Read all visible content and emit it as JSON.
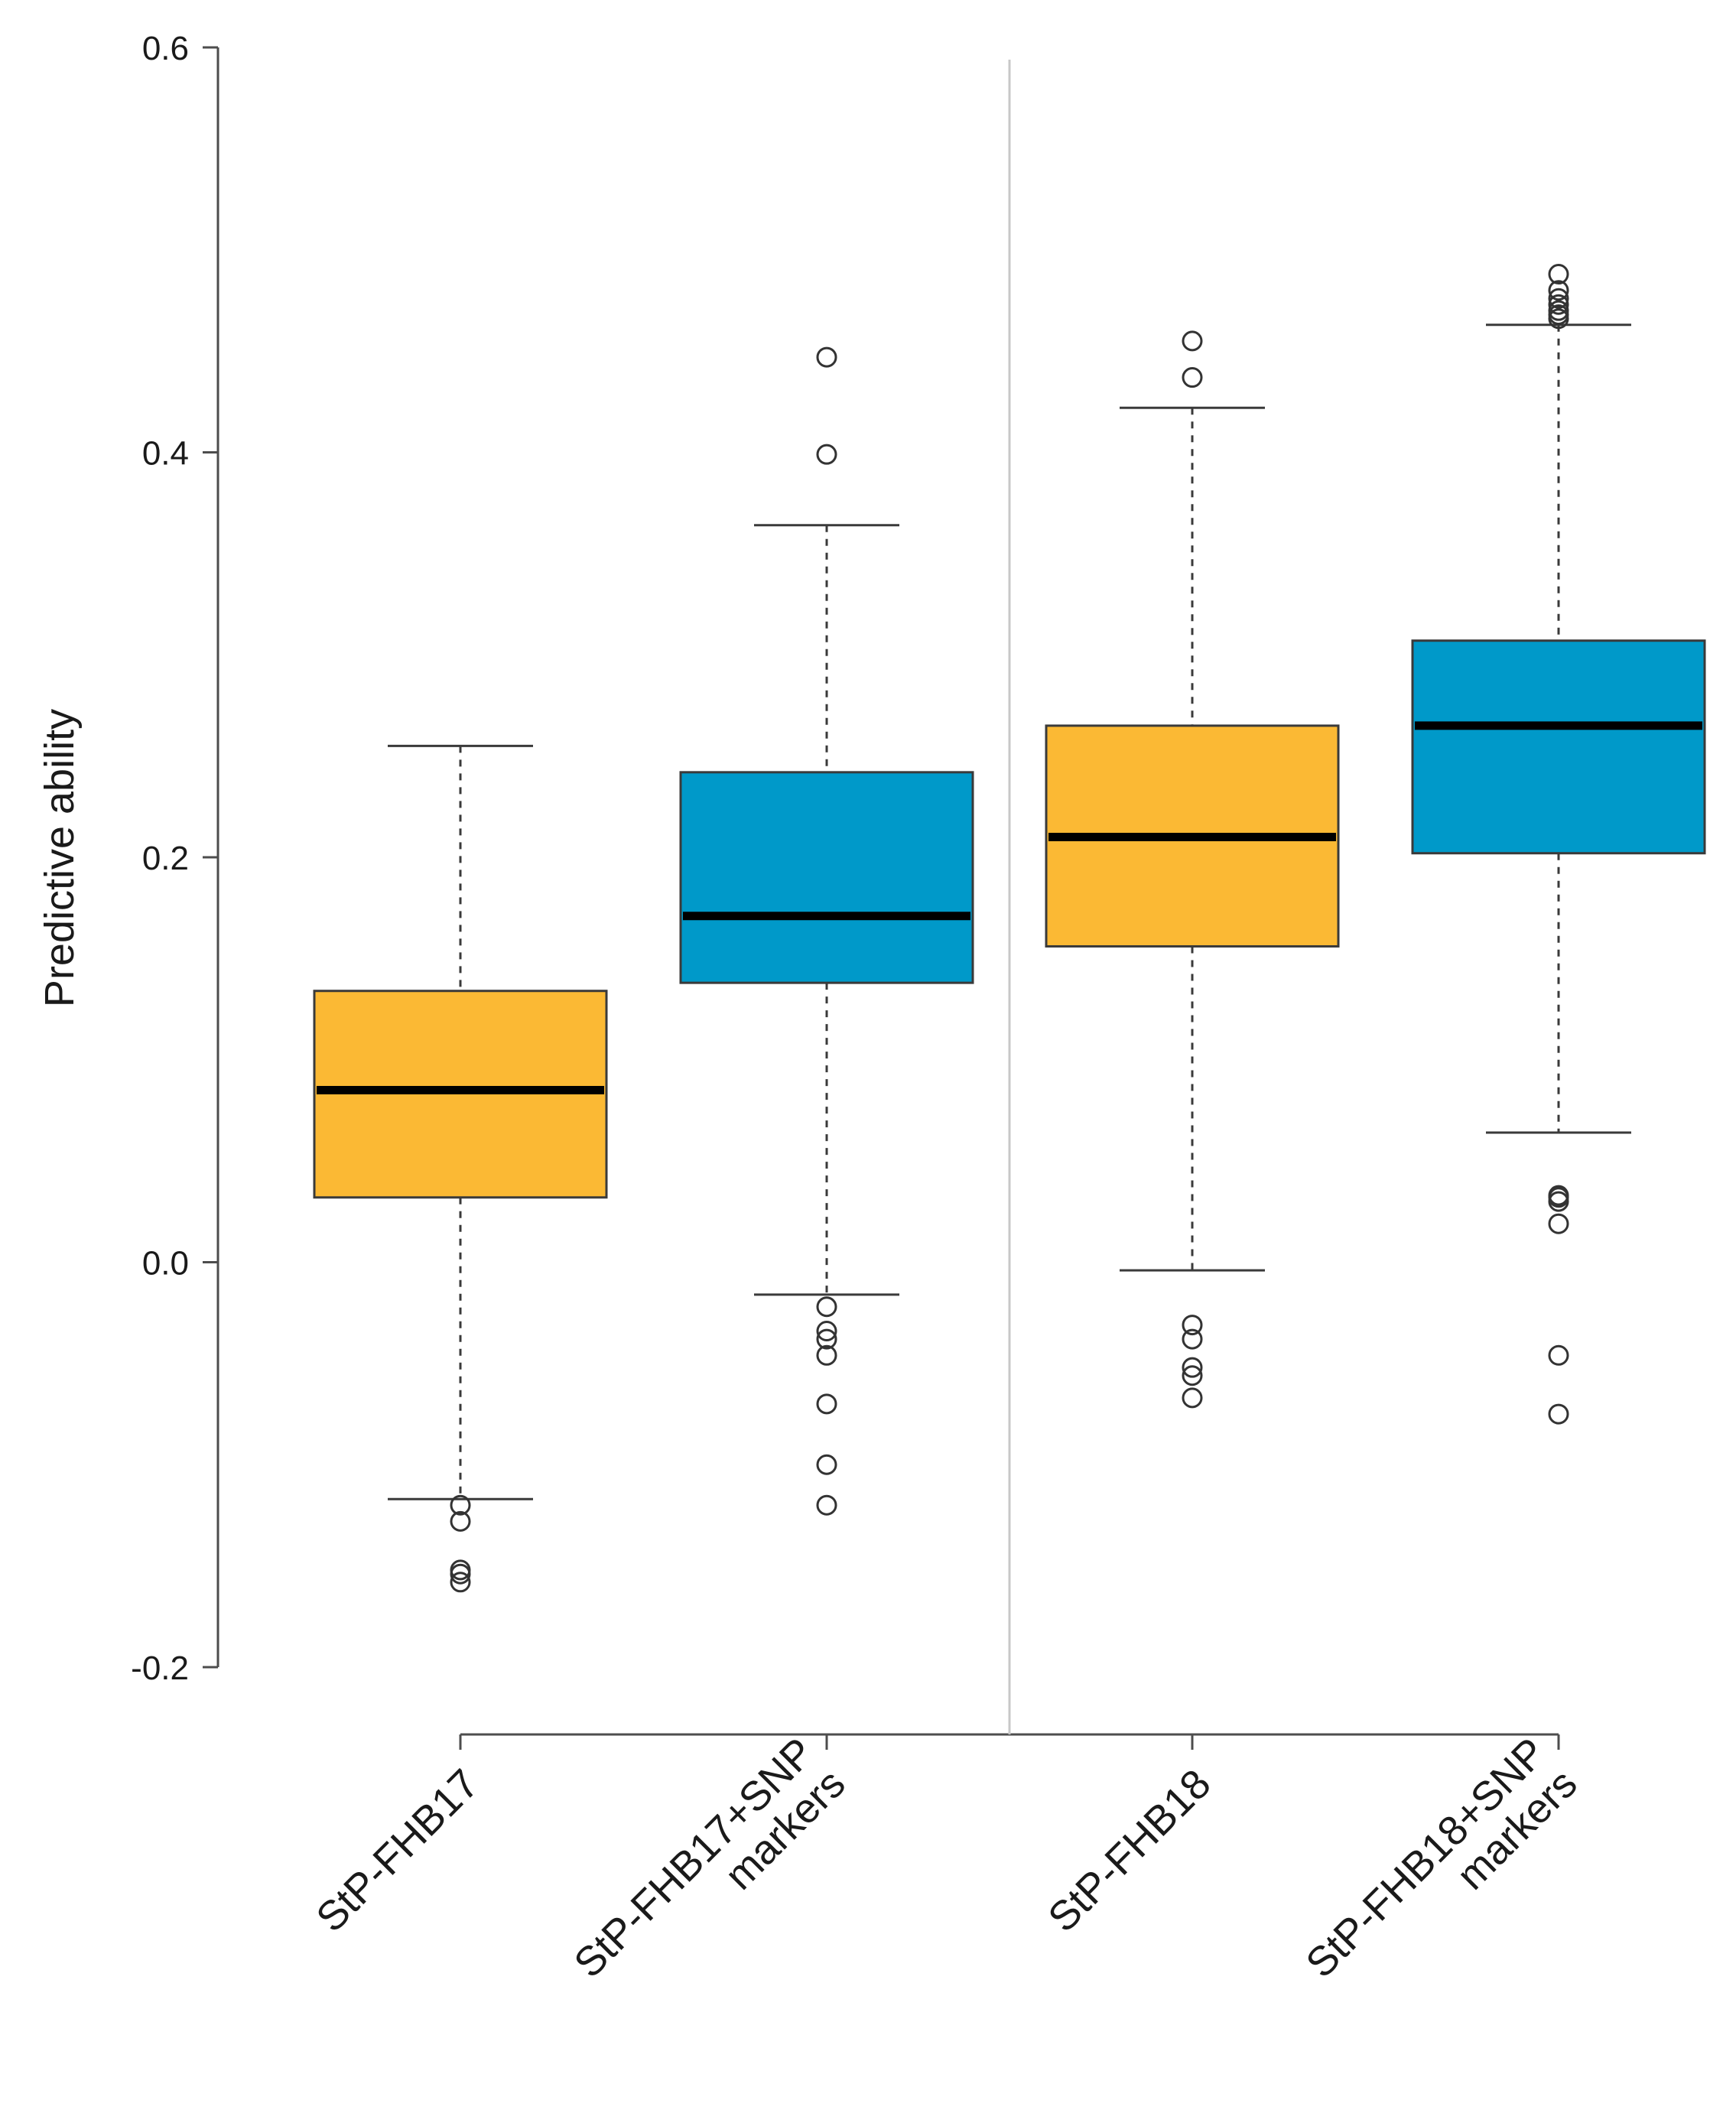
{
  "chart_data": {
    "type": "boxplot",
    "title": "",
    "xlabel": "",
    "ylabel": "Predictive ability",
    "ylim": [
      -0.2,
      0.6
    ],
    "yticks": [
      -0.2,
      0.0,
      0.2,
      0.4,
      0.6
    ],
    "ytick_labels": [
      "-0.2",
      "0.0",
      "0.2",
      "0.4",
      "0.6"
    ],
    "grid": false,
    "legend": "none",
    "group_divider_after": 2,
    "categories": [
      {
        "label_lines": [
          "StP-FHB17"
        ],
        "color": "#fbb934",
        "lower_whisker": -0.117,
        "q1": 0.032,
        "median": 0.085,
        "q3": 0.134,
        "upper_whisker": 0.255,
        "outliers": [
          -0.12,
          -0.128,
          -0.152,
          -0.154,
          -0.158
        ]
      },
      {
        "label_lines": [
          "StP-FHB17+SNP",
          "markers"
        ],
        "color": "#0099c9",
        "lower_whisker": -0.016,
        "q1": 0.138,
        "median": 0.171,
        "q3": 0.242,
        "upper_whisker": 0.364,
        "outliers": [
          -0.022,
          -0.034,
          -0.038,
          -0.046,
          -0.07,
          -0.1,
          -0.12,
          0.399,
          0.447
        ]
      },
      {
        "label_lines": [
          "StP-FHB18"
        ],
        "color": "#fbb934",
        "lower_whisker": -0.004,
        "q1": 0.156,
        "median": 0.21,
        "q3": 0.265,
        "upper_whisker": 0.422,
        "outliers": [
          -0.031,
          -0.038,
          -0.052,
          -0.056,
          -0.067,
          0.437,
          0.455
        ]
      },
      {
        "label_lines": [
          "StP-FHB18+SNP",
          "markers"
        ],
        "color": "#0099c9",
        "lower_whisker": 0.064,
        "q1": 0.202,
        "median": 0.265,
        "q3": 0.307,
        "upper_whisker": 0.463,
        "outliers": [
          -0.075,
          -0.046,
          0.019,
          0.03,
          0.032,
          0.033,
          0.466,
          0.468,
          0.47,
          0.473,
          0.476,
          0.48,
          0.488
        ]
      }
    ]
  }
}
